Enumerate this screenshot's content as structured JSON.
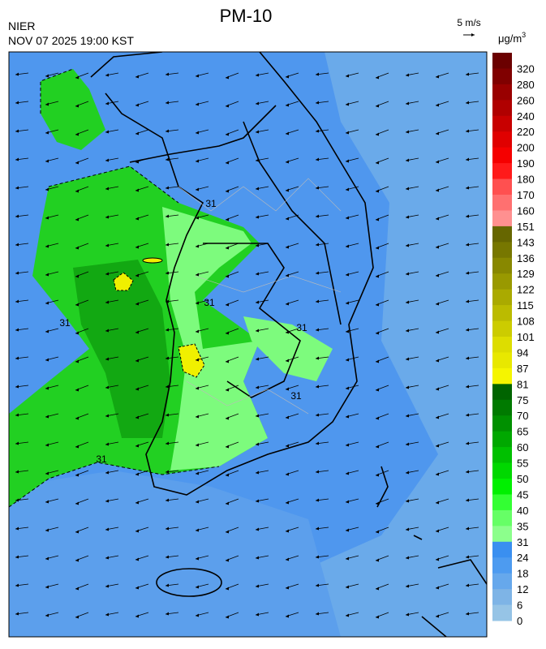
{
  "header": {
    "title": "PM-10",
    "agency": "NIER",
    "timestamp": "NOV 07 2025 19:00 KST",
    "wind_scale": "5 m/s",
    "unit": "μg/m",
    "unit_superscript": "3"
  },
  "colorbar": {
    "labels": [
      320,
      280,
      260,
      240,
      220,
      200,
      190,
      180,
      170,
      160,
      151,
      143,
      136,
      129,
      122,
      115,
      108,
      101,
      94,
      87,
      81,
      75,
      70,
      65,
      60,
      55,
      50,
      45,
      40,
      35,
      31,
      24,
      18,
      12,
      6,
      0
    ],
    "colors": [
      "#6b0000",
      "#800000",
      "#990000",
      "#b00000",
      "#c80000",
      "#e00000",
      "#f50000",
      "#ff1a1a",
      "#ff5050",
      "#ff7070",
      "#ff9090",
      "#666600",
      "#777700",
      "#888800",
      "#999900",
      "#aaaa00",
      "#bbbb00",
      "#cccc00",
      "#dddd00",
      "#e8e800",
      "#f5f500",
      "#006400",
      "#007a00",
      "#009000",
      "#00a800",
      "#00c000",
      "#00d800",
      "#00f000",
      "#33ff33",
      "#66ff66",
      "#8cff8c",
      "#3a8ff0",
      "#4d9bf0",
      "#66a8ec",
      "#7eb4e6",
      "#96c4e6"
    ]
  },
  "map": {
    "contour_labels": [
      "31",
      "31",
      "31",
      "31",
      "31",
      "31"
    ]
  }
}
